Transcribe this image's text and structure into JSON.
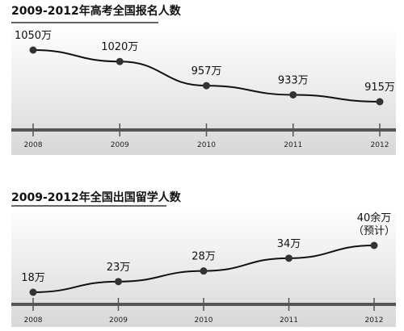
{
  "chart_data": [
    {
      "type": "line",
      "title": "2009-2012年高考全国报名人数",
      "categories": [
        "2008",
        "2009",
        "2010",
        "2011",
        "2012"
      ],
      "values": [
        1050,
        1020,
        957,
        933,
        915
      ],
      "unit": "万",
      "data_labels": [
        [
          "1050万"
        ],
        [
          "1020万"
        ],
        [
          "957万"
        ],
        [
          "933万"
        ],
        [
          "915万"
        ]
      ],
      "ylim": [
        880,
        1080
      ],
      "grid": false,
      "colors": {
        "line": "#111111",
        "point": "#333333",
        "axis": "#555555",
        "background_top": "#ffffff",
        "background_bottom": "#dcdcdc"
      }
    },
    {
      "type": "line",
      "title": "2009-2012年全国出国留学人数",
      "categories": [
        "2008",
        "2009",
        "2010",
        "2011",
        "2012"
      ],
      "values": [
        18,
        23,
        28,
        34,
        40
      ],
      "unit": "万",
      "data_labels": [
        [
          "18万"
        ],
        [
          "23万"
        ],
        [
          "28万"
        ],
        [
          "34万"
        ],
        [
          "40余万",
          "（预计）"
        ]
      ],
      "ylim": [
        10,
        48
      ],
      "grid": false,
      "colors": {
        "line": "#111111",
        "point": "#333333",
        "axis": "#555555",
        "background_top": "#ffffff",
        "background_bottom": "#dcdcdc"
      }
    }
  ]
}
